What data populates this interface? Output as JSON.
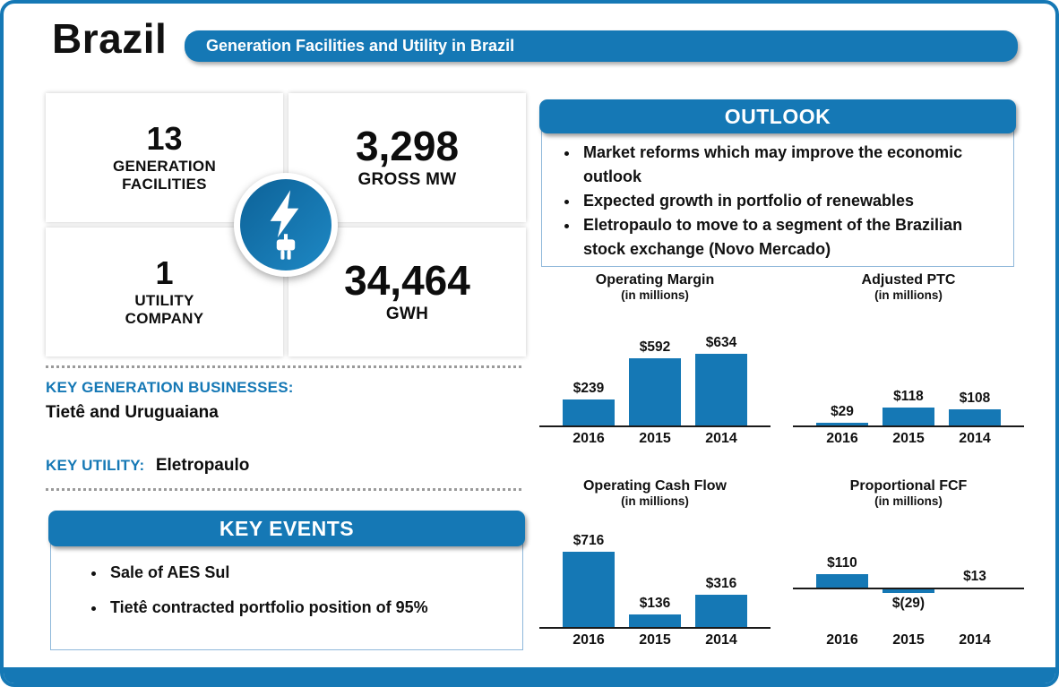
{
  "page": {
    "title": "Brazil",
    "banner": "Generation Facilities and Utility in Brazil"
  },
  "colors": {
    "accent": "#1578b5",
    "icon_dark": "#0d6298",
    "icon_light": "#1e88c4"
  },
  "icons": {
    "stats_center": "electricity-bolt-plug-icon"
  },
  "stats": [
    {
      "value": "13",
      "label1": "GENERATION",
      "label2": "FACILITIES"
    },
    {
      "value": "3,298",
      "label1": "GROSS MW"
    },
    {
      "value": "1",
      "label1": "UTILITY",
      "label2": "COMPANY"
    },
    {
      "value": "34,464",
      "label1": "GWH"
    }
  ],
  "key_info": {
    "generation_label": "KEY GENERATION BUSINESSES:",
    "generation_value": "Tietê and Uruguaiana",
    "utility_label": "KEY UTILITY:",
    "utility_value": "Eletropaulo"
  },
  "key_events": {
    "title": "KEY EVENTS",
    "items": [
      "Sale of AES Sul",
      "Tietê contracted portfolio position of 95%"
    ]
  },
  "outlook": {
    "title": "OUTLOOK",
    "items": [
      "Market reforms which may improve the economic outlook",
      "Expected growth in portfolio of renewables",
      "Eletropaulo to move to a segment of the Brazilian stock exchange (Novo Mercado)"
    ]
  },
  "chart_data": [
    {
      "type": "bar",
      "title": "Operating Margin",
      "subtitle": "(in millions)",
      "categories": [
        "2016",
        "2015",
        "2014"
      ],
      "values": [
        239,
        592,
        634
      ],
      "value_labels": [
        "$239",
        "$592",
        "$634"
      ],
      "ylim": [
        0,
        850
      ],
      "grid": false,
      "bar_color": "#1578b5"
    },
    {
      "type": "bar",
      "title": "Adjusted PTC",
      "subtitle": "(in millions)",
      "categories": [
        "2016",
        "2015",
        "2014"
      ],
      "values": [
        29,
        118,
        108
      ],
      "value_labels": [
        "$29",
        "$118",
        "$108"
      ],
      "ylim": [
        0,
        600
      ],
      "grid": false,
      "bar_color": "#1578b5"
    },
    {
      "type": "bar",
      "title": "Operating Cash Flow",
      "subtitle": "(in millions)",
      "categories": [
        "2016",
        "2015",
        "2014"
      ],
      "values": [
        716,
        136,
        316
      ],
      "value_labels": [
        "$716",
        "$136",
        "$316"
      ],
      "ylim": [
        0,
        870
      ],
      "grid": false,
      "bar_color": "#1578b5"
    },
    {
      "type": "bar",
      "title": "Proportional FCF",
      "subtitle": "(in millions)",
      "categories": [
        "2016",
        "2015",
        "2014"
      ],
      "values": [
        110,
        -29,
        13
      ],
      "value_labels": [
        "$110",
        "$(29)",
        "$13"
      ],
      "ylim": [
        -60,
        400
      ],
      "grid": false,
      "bar_color": "#1578b5"
    }
  ]
}
